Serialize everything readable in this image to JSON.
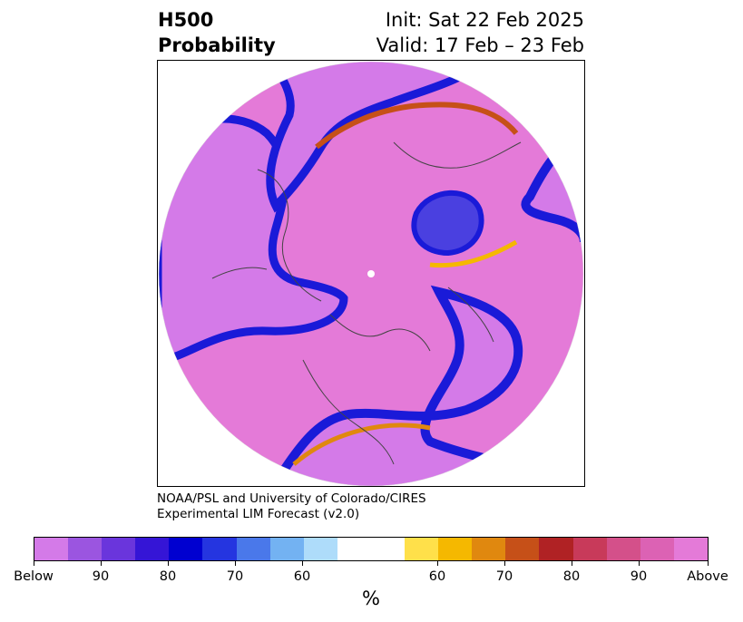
{
  "title": {
    "left_line1": "H500",
    "left_line2": "Probability",
    "right_line1": "Init: Sat 22 Feb 2025",
    "right_line2": "Valid: 17 Feb – 23 Feb"
  },
  "credit": {
    "line1": "NOAA/PSL and University of Colorado/CIRES",
    "line2": "Experimental LIM Forecast (v2.0)"
  },
  "colorbar": {
    "colors": [
      "#d47ae8",
      "#9b55e0",
      "#6a35dc",
      "#3515d6",
      "#0000d0",
      "#2535e0",
      "#4a78ea",
      "#73b2f2",
      "#aedcfa",
      "#ffffff",
      "#ffe04a",
      "#f5b800",
      "#e0880f",
      "#c65018",
      "#b02224",
      "#c83a5a",
      "#d4508a",
      "#dc62b4",
      "#e47ad8"
    ],
    "tick_labels": [
      "Below",
      "90",
      "80",
      "70",
      "60",
      "60",
      "70",
      "80",
      "90",
      "Above"
    ],
    "unit": "%"
  },
  "legend_categories": {
    "below": "Below",
    "above": "Above"
  }
}
